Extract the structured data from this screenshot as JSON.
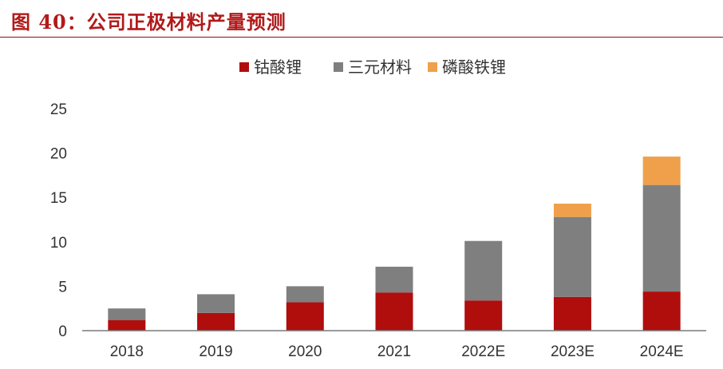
{
  "figure_title": "图 40：公司正极材料产量预测",
  "colors": {
    "title": "#b01a1a",
    "lco": "#b00d0d",
    "ncm": "#7f7f7f",
    "lfp": "#f0a04a",
    "axis": "#7a7a7a",
    "text": "#333333"
  },
  "chart_data": {
    "type": "bar",
    "stacked": true,
    "title": "",
    "xlabel": "",
    "ylabel": "",
    "ylim": [
      0,
      25
    ],
    "yticks": [
      "0",
      "5",
      "10",
      "15",
      "20",
      "25"
    ],
    "grid": false,
    "legend_position": "top-center",
    "categories": [
      "2018",
      "2019",
      "2020",
      "2021",
      "2022E",
      "2023E",
      "2024E"
    ],
    "series": [
      {
        "name": "钴酸锂",
        "color": "#b00d0d",
        "values": [
          1.2,
          2.0,
          3.2,
          4.3,
          3.4,
          3.8,
          4.4
        ]
      },
      {
        "name": "三元材料",
        "color": "#7f7f7f",
        "values": [
          1.3,
          2.1,
          1.8,
          2.9,
          6.7,
          9.0,
          12.0
        ]
      },
      {
        "name": "磷酸铁锂",
        "color": "#f0a04a",
        "values": [
          0,
          0,
          0,
          0,
          0,
          1.5,
          3.2
        ]
      }
    ]
  }
}
